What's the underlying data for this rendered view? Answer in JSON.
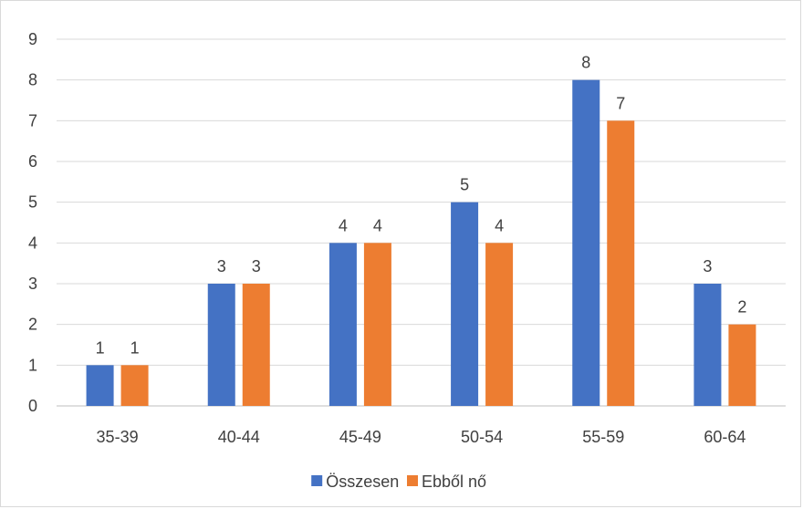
{
  "chart_data": {
    "type": "bar",
    "categories": [
      "35-39",
      "40-44",
      "45-49",
      "50-54",
      "55-59",
      "60-64"
    ],
    "series": [
      {
        "name": "Összesen",
        "values": [
          1,
          3,
          4,
          5,
          8,
          3
        ],
        "color": "#4472C4"
      },
      {
        "name": "Ebből nő",
        "values": [
          1,
          3,
          4,
          4,
          7,
          2
        ],
        "color": "#ED7D31"
      }
    ],
    "ylim": [
      0,
      9
    ],
    "yticks": [
      0,
      1,
      2,
      3,
      4,
      5,
      6,
      7,
      8,
      9
    ],
    "grid": true,
    "legend": "bottom"
  }
}
